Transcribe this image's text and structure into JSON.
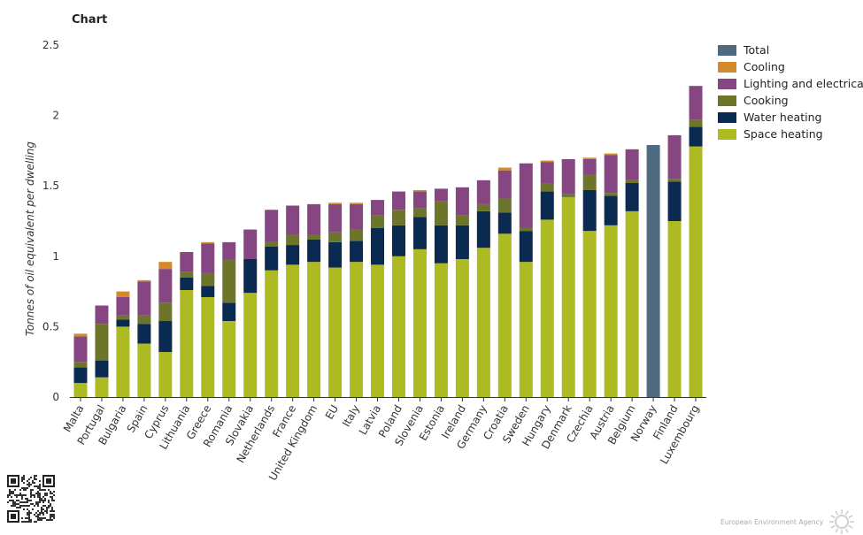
{
  "header": {
    "title": "Chart"
  },
  "footer": {
    "agency": "European Environment Agency"
  },
  "colors": {
    "Total": "#4d6a80",
    "Cooling": "#d4892a",
    "Lighting and electrical appliances": "#854681",
    "Cooking": "#6d752a",
    "Water heating": "#0a2a52",
    "Space heating": "#adba21"
  },
  "legend": {
    "items": [
      {
        "label": "Total",
        "color": "#4d6a80"
      },
      {
        "label": "Cooling",
        "color": "#d4892a"
      },
      {
        "label": "Lighting and electrical appliances",
        "color": "#854681"
      },
      {
        "label": "Cooking",
        "color": "#6d752a"
      },
      {
        "label": "Water heating",
        "color": "#0a2a52"
      },
      {
        "label": "Space heating",
        "color": "#adba21"
      }
    ]
  },
  "chart_data": {
    "type": "bar",
    "stacked": true,
    "title": "Chart",
    "xlabel": "",
    "ylabel": "Tonnes of oil equivalent per dwelling",
    "ylim": [
      0,
      2.5
    ],
    "yticks": [
      0,
      0.5,
      1,
      1.5,
      2,
      2.5
    ],
    "ytick_labels": [
      "0",
      "0.5",
      "1",
      "1.5",
      "2",
      "2.5"
    ],
    "grid": false,
    "legend_position": "right",
    "categories": [
      "Malta",
      "Portugal",
      "Bulgaria",
      "Spain",
      "Cyprus",
      "Lithuania",
      "Greece",
      "Romania",
      "Slovakia",
      "Netherlands",
      "France",
      "United Kingdom",
      "EU",
      "Italy",
      "Latvia",
      "Poland",
      "Slovenia",
      "Estonia",
      "Ireland",
      "Germany",
      "Croatia",
      "Sweden",
      "Hungary",
      "Denmark",
      "Czechia",
      "Austria",
      "Belgium",
      "Norway",
      "Finland",
      "Luxembourg"
    ],
    "series": [
      {
        "name": "Space heating",
        "values": [
          0.1,
          0.14,
          0.5,
          0.38,
          0.32,
          0.76,
          0.71,
          0.54,
          0.74,
          0.9,
          0.94,
          0.96,
          0.92,
          0.96,
          0.94,
          1.0,
          1.05,
          0.95,
          0.98,
          1.06,
          1.16,
          0.96,
          1.26,
          1.42,
          1.18,
          1.22,
          1.32,
          0,
          1.25,
          1.78
        ]
      },
      {
        "name": "Water heating",
        "values": [
          0.11,
          0.12,
          0.05,
          0.14,
          0.22,
          0.09,
          0.08,
          0.13,
          0.24,
          0.17,
          0.14,
          0.16,
          0.18,
          0.15,
          0.26,
          0.22,
          0.23,
          0.27,
          0.24,
          0.26,
          0.15,
          0.22,
          0.2,
          0,
          0.29,
          0.21,
          0.2,
          0,
          0.28,
          0.14
        ]
      },
      {
        "name": "Cooking",
        "values": [
          0.04,
          0.26,
          0.03,
          0.06,
          0.13,
          0.04,
          0.09,
          0.31,
          0,
          0.03,
          0.07,
          0.03,
          0.07,
          0.08,
          0.09,
          0.11,
          0.06,
          0.17,
          0.07,
          0.05,
          0.1,
          0.02,
          0.06,
          0.02,
          0.11,
          0.02,
          0.02,
          0,
          0.02,
          0.05
        ]
      },
      {
        "name": "Lighting and electrical appliances",
        "values": [
          0.18,
          0.13,
          0.13,
          0.24,
          0.24,
          0.14,
          0.21,
          0.12,
          0.21,
          0.23,
          0.21,
          0.22,
          0.2,
          0.18,
          0.11,
          0.13,
          0.12,
          0.09,
          0.2,
          0.17,
          0.2,
          0.46,
          0.15,
          0.25,
          0.11,
          0.27,
          0.22,
          0,
          0.31,
          0.24
        ]
      },
      {
        "name": "Cooling",
        "values": [
          0.02,
          0,
          0.04,
          0.01,
          0.05,
          0,
          0.01,
          0,
          0,
          0,
          0,
          0,
          0.01,
          0.01,
          0,
          0,
          0.01,
          0,
          0,
          0,
          0.02,
          0,
          0.01,
          0,
          0.01,
          0.01,
          0,
          0,
          0,
          0
        ]
      },
      {
        "name": "Total",
        "values": [
          0,
          0,
          0,
          0,
          0,
          0,
          0,
          0,
          0,
          0,
          0,
          0,
          0,
          0,
          0,
          0,
          0,
          0,
          0,
          0,
          0,
          0,
          0,
          0,
          0,
          0,
          0,
          1.79,
          0,
          0
        ]
      }
    ]
  }
}
